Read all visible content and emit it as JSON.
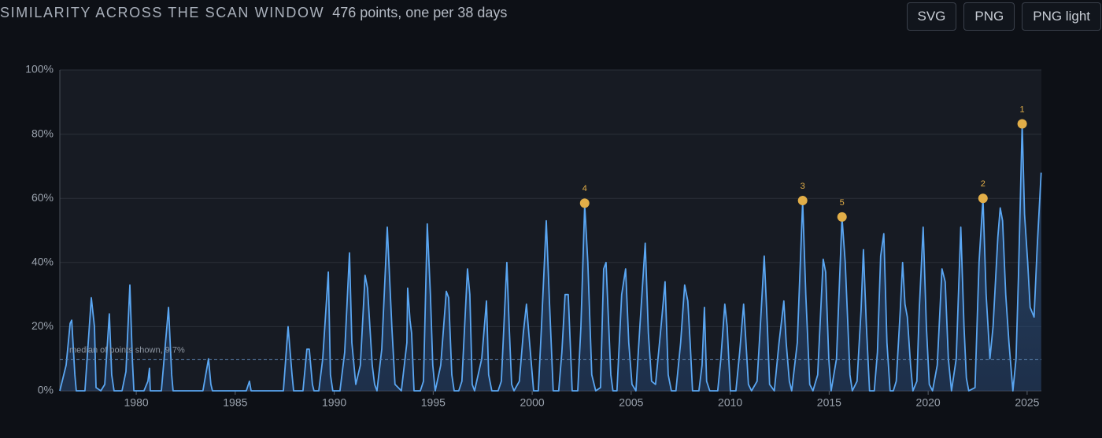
{
  "header": {
    "title": "SIMILARITY ACROSS THE SCAN WINDOW",
    "subtitle": "476 points, one per 38 days",
    "buttons": [
      "SVG",
      "PNG",
      "PNG light"
    ]
  },
  "chart_data": {
    "type": "line",
    "xlim": [
      1976.14,
      2025.72
    ],
    "ylim": [
      0,
      100
    ],
    "xticks": [
      1980,
      1985,
      1990,
      1995,
      2000,
      2005,
      2010,
      2015,
      2020,
      2025
    ],
    "yticks": [
      {
        "value": 0,
        "label": "0%"
      },
      {
        "value": 20,
        "label": "20%"
      },
      {
        "value": 40,
        "label": "40%"
      },
      {
        "value": 60,
        "label": "60%"
      },
      {
        "value": 80,
        "label": "80%"
      },
      {
        "value": 100,
        "label": "100%"
      }
    ],
    "grid": true,
    "series": [
      {
        "color": "#5aa6f2",
        "x": [
          1976.14,
          1976.46,
          1976.66,
          1976.74,
          1976.9,
          1976.97,
          1977.41,
          1977.73,
          1977.89,
          1977.97,
          1978.21,
          1978.41,
          1978.64,
          1978.76,
          1978.88,
          1979.28,
          1979.48,
          1979.68,
          1979.8,
          1979.88,
          1980.39,
          1980.59,
          1980.67,
          1980.71,
          1981.27,
          1981.63,
          1981.79,
          1981.86,
          1983.37,
          1983.65,
          1983.77,
          1983.85,
          1985.56,
          1985.72,
          1985.8,
          1987.43,
          1987.67,
          1987.87,
          1987.95,
          1988.42,
          1988.62,
          1988.74,
          1988.9,
          1988.98,
          1989.22,
          1989.42,
          1989.7,
          1989.81,
          1989.93,
          1990.29,
          1990.53,
          1990.77,
          1990.89,
          1991.09,
          1991.32,
          1991.56,
          1991.68,
          1991.92,
          1992.04,
          1992.16,
          1992.4,
          1992.68,
          1992.91,
          1993.07,
          1993.39,
          1993.67,
          1993.71,
          1993.83,
          1993.91,
          1994.03,
          1994.35,
          1994.51,
          1994.7,
          1994.86,
          1994.98,
          1995.1,
          1995.38,
          1995.66,
          1995.78,
          1995.94,
          1996.06,
          1996.29,
          1996.45,
          1996.73,
          1996.85,
          1996.97,
          1997.09,
          1997.45,
          1997.69,
          1997.8,
          1997.96,
          1998.28,
          1998.44,
          1998.72,
          1998.84,
          1998.96,
          1999.08,
          1999.35,
          1999.55,
          1999.71,
          1999.87,
          2000.07,
          2000.31,
          2000.47,
          2000.71,
          2000.87,
          2001.06,
          2001.34,
          2001.5,
          2001.66,
          2001.82,
          2002.02,
          2002.3,
          2002.46,
          2002.65,
          2002.81,
          2003.01,
          2003.21,
          2003.45,
          2003.61,
          2003.73,
          2003.97,
          2004.08,
          2004.28,
          2004.52,
          2004.72,
          2004.88,
          2005.04,
          2005.24,
          2005.44,
          2005.71,
          2005.87,
          2006.03,
          2006.23,
          2006.51,
          2006.71,
          2006.87,
          2007.03,
          2007.26,
          2007.5,
          2007.7,
          2007.86,
          2007.98,
          2008.1,
          2008.42,
          2008.58,
          2008.7,
          2008.81,
          2008.97,
          2009.37,
          2009.53,
          2009.73,
          2009.85,
          2010.01,
          2010.29,
          2010.48,
          2010.68,
          2010.8,
          2010.92,
          2011.08,
          2011.36,
          2011.52,
          2011.72,
          2011.88,
          2011.99,
          2012.23,
          2012.47,
          2012.71,
          2012.83,
          2012.99,
          2013.11,
          2013.39,
          2013.66,
          2013.82,
          2014.02,
          2014.18,
          2014.42,
          2014.7,
          2014.82,
          2014.98,
          2015.1,
          2015.37,
          2015.65,
          2015.81,
          2016.05,
          2016.17,
          2016.41,
          2016.61,
          2016.73,
          2016.88,
          2017.04,
          2017.28,
          2017.44,
          2017.6,
          2017.76,
          2017.92,
          2018.08,
          2018.24,
          2018.39,
          2018.59,
          2018.71,
          2018.83,
          2018.95,
          2019.11,
          2019.23,
          2019.43,
          2019.55,
          2019.75,
          2019.91,
          2020.06,
          2020.22,
          2020.46,
          2020.7,
          2020.86,
          2021.02,
          2021.18,
          2021.42,
          2021.65,
          2021.81,
          2021.93,
          2022.05,
          2022.37,
          2022.57,
          2022.77,
          2022.93,
          2023.12,
          2023.28,
          2023.52,
          2023.64,
          2023.76,
          2023.92,
          2024.08,
          2024.28,
          2024.44,
          2024.56,
          2024.75,
          2024.87,
          2025.03,
          2025.15,
          2025.35,
          2025.51,
          2025.71
        ],
        "values": [
          0,
          8,
          21,
          22,
          5,
          0,
          0,
          29,
          20,
          1,
          0,
          2,
          24,
          5,
          0,
          0,
          6,
          33,
          10,
          0,
          0,
          3,
          7,
          0,
          0,
          26,
          5,
          0,
          0,
          10,
          2,
          0,
          0,
          3,
          0,
          0,
          20,
          5,
          0,
          0,
          13,
          13,
          2,
          0,
          0,
          10,
          37,
          5,
          0,
          0,
          12,
          43,
          15,
          2,
          8,
          36,
          32,
          8,
          2,
          0,
          13,
          51,
          20,
          2,
          0,
          15,
          32,
          22,
          18,
          0,
          0,
          3,
          52,
          30,
          8,
          0,
          8,
          31,
          29,
          5,
          0,
          0,
          3,
          38,
          30,
          2,
          0,
          10,
          28,
          5,
          0,
          0,
          3,
          40,
          20,
          2,
          0,
          3,
          18,
          27,
          15,
          0,
          0,
          20,
          53,
          28,
          0,
          0,
          12,
          30,
          30,
          0,
          0,
          20,
          58,
          40,
          5,
          0,
          1,
          38,
          40,
          5,
          0,
          0,
          30,
          38,
          15,
          2,
          0,
          20,
          46,
          18,
          3,
          2,
          20,
          34,
          5,
          0,
          0,
          15,
          33,
          28,
          15,
          0,
          0,
          8,
          26,
          3,
          0,
          0,
          10,
          27,
          20,
          0,
          0,
          12,
          27,
          15,
          2,
          0,
          3,
          20,
          42,
          20,
          2,
          0,
          15,
          28,
          15,
          3,
          0,
          15,
          59,
          30,
          2,
          0,
          5,
          41,
          37,
          10,
          0,
          10,
          54,
          40,
          5,
          0,
          3,
          25,
          44,
          20,
          0,
          0,
          12,
          42,
          49,
          15,
          0,
          0,
          3,
          25,
          40,
          27,
          23,
          8,
          0,
          3,
          25,
          51,
          20,
          2,
          0,
          8,
          38,
          34,
          10,
          0,
          10,
          51,
          20,
          4,
          0,
          1,
          40,
          60,
          30,
          10,
          20,
          48,
          57,
          53,
          30,
          15,
          0,
          10,
          35,
          83,
          55,
          40,
          26,
          23,
          45,
          68
        ]
      }
    ],
    "median": {
      "value": 9.7,
      "label": "median of points shown, 9.7%"
    },
    "markers": [
      {
        "label": "1",
        "x": 2024.75,
        "value": 83.2
      },
      {
        "label": "2",
        "x": 2022.77,
        "value": 60
      },
      {
        "label": "3",
        "x": 2013.66,
        "value": 59.3
      },
      {
        "label": "4",
        "x": 2002.65,
        "value": 58.5
      },
      {
        "label": "5",
        "x": 2015.65,
        "value": 54.2
      }
    ],
    "marker_color": "#e2ae48"
  }
}
